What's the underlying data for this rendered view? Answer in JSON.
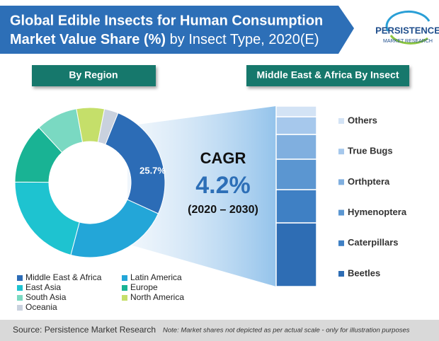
{
  "header": {
    "title_line1": "Global Edible Insects for Human Consumption",
    "title_bold2": "Market Value Share (%)",
    "title_rest2": " by Insect Type, 2020(E)",
    "logo_main": "PERSISTENCE",
    "logo_sub": "MARKET RESEARCH"
  },
  "cagr": {
    "label": "CAGR",
    "value": "4.2%",
    "period": "(2020 – 2030)"
  },
  "chart_data": [
    {
      "type": "donut",
      "title": "By Region",
      "categories": [
        "Middle East & Africa",
        "Latin America",
        "East Asia",
        "Europe",
        "South Asia",
        "North America",
        "Oceania"
      ],
      "values": [
        25.7,
        22.3,
        21,
        13,
        9,
        6,
        3
      ],
      "value_labels": [
        "25.7%",
        null,
        null,
        null,
        null,
        null,
        null
      ],
      "colors": [
        "#2c6cb6",
        "#23a6d8",
        "#1ec3d0",
        "#19b394",
        "#7ad9c2",
        "#c5df6a",
        "#c9d1de"
      ]
    },
    {
      "type": "stacked_bar",
      "title": "Middle East & Africa By Insect",
      "categories": [
        "Beetles",
        "Caterpillars",
        "Hymenoptera",
        "Orthptera",
        "True Bugs",
        "Others"
      ],
      "values": [
        35.3,
        18.4,
        16.9,
        13.7,
        9.8,
        5.9
      ],
      "colors": [
        "#2e6db4",
        "#3f80c4",
        "#5b96d1",
        "#80afdf",
        "#a6c8ec",
        "#d3e3f5"
      ]
    }
  ],
  "footer": {
    "source": "Source: Persistence Market Research",
    "note": "Note: Market shares not depicted as per actual scale - only for illustration purposes"
  }
}
